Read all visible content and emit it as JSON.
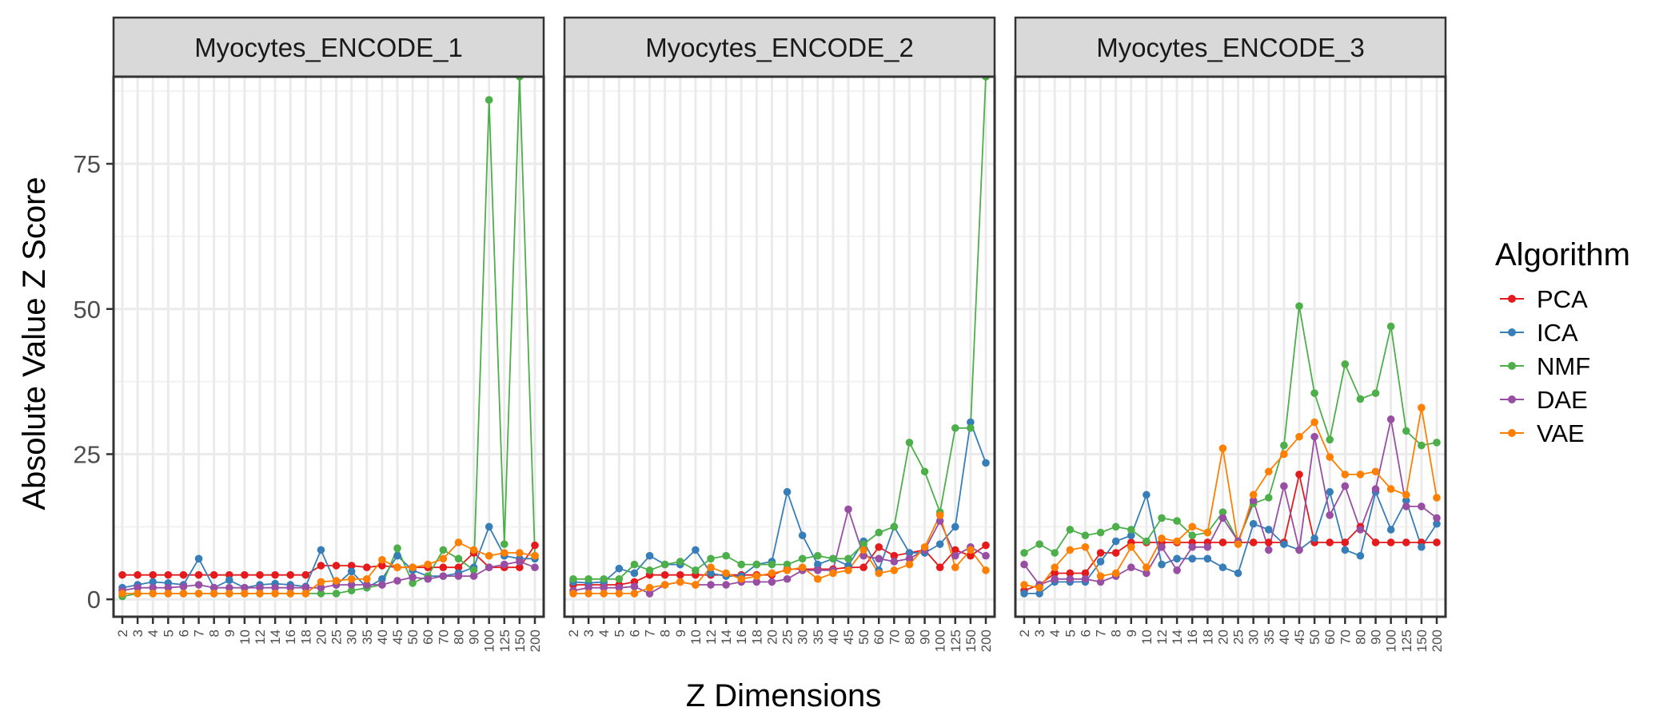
{
  "chart_data": {
    "type": "line",
    "facet_titles": [
      "Myocytes_ENCODE_1",
      "Myocytes_ENCODE_2",
      "Myocytes_ENCODE_3"
    ],
    "xlabel": "Z Dimensions",
    "ylabel": "Absolute Value Z Score",
    "ylim": [
      -3,
      90
    ],
    "y_ticks": [
      0,
      25,
      50,
      75
    ],
    "grid": true,
    "legend_position": "right",
    "legend_title": "Algorithm",
    "categories": [
      "2",
      "3",
      "4",
      "5",
      "6",
      "7",
      "8",
      "9",
      "10",
      "12",
      "14",
      "16",
      "18",
      "20",
      "25",
      "30",
      "35",
      "40",
      "45",
      "50",
      "60",
      "70",
      "80",
      "90",
      "100",
      "125",
      "150",
      "200"
    ],
    "series_names": [
      "PCA",
      "ICA",
      "NMF",
      "DAE",
      "VAE"
    ],
    "colors": [
      "#e41a1c",
      "#377eb8",
      "#4daf4a",
      "#984ea3",
      "#ff7f00"
    ],
    "panels": [
      {
        "title": "Myocytes_ENCODE_1",
        "series": [
          {
            "name": "PCA",
            "values": [
              4.2,
              4.2,
              4.2,
              4.2,
              4.2,
              4.2,
              4.2,
              4.2,
              4.2,
              4.2,
              4.2,
              4.2,
              4.2,
              5.8,
              5.8,
              5.8,
              5.5,
              5.8,
              5.5,
              5.5,
              5.5,
              5.5,
              5.5,
              8.0,
              5.5,
              5.5,
              5.5,
              9.3
            ]
          },
          {
            "name": "ICA",
            "values": [
              2.0,
              2.5,
              3.0,
              2.8,
              2.5,
              7.0,
              2.0,
              3.3,
              2.0,
              2.5,
              2.7,
              2.5,
              2.2,
              8.5,
              2.5,
              4.8,
              2.0,
              3.5,
              7.5,
              5.0,
              4.0,
              4.0,
              4.5,
              5.5,
              12.5,
              7.5,
              7.0,
              7.0
            ]
          },
          {
            "name": "NMF",
            "values": [
              0.5,
              1.0,
              1.0,
              1.0,
              1.0,
              1.0,
              1.0,
              1.0,
              1.0,
              1.0,
              1.0,
              1.0,
              1.0,
              1.0,
              1.0,
              1.5,
              2.0,
              2.5,
              8.8,
              2.8,
              4.0,
              8.5,
              7.0,
              5.0,
              86.0,
              9.5,
              90.0,
              7.5
            ]
          },
          {
            "name": "DAE",
            "values": [
              1.5,
              2.0,
              2.0,
              2.0,
              2.2,
              2.5,
              2.0,
              2.0,
              2.0,
              2.0,
              2.0,
              2.0,
              2.0,
              2.0,
              2.5,
              2.5,
              2.5,
              2.5,
              3.2,
              3.8,
              3.5,
              4.0,
              4.0,
              4.0,
              5.5,
              6.0,
              6.5,
              5.5
            ]
          },
          {
            "name": "VAE",
            "values": [
              1.0,
              1.0,
              1.0,
              1.0,
              1.0,
              1.0,
              1.0,
              1.0,
              1.0,
              1.0,
              1.0,
              1.0,
              1.0,
              3.0,
              3.2,
              3.5,
              3.5,
              6.8,
              5.5,
              5.5,
              6.0,
              7.0,
              9.8,
              8.5,
              7.5,
              8.0,
              8.0,
              7.5
            ]
          }
        ]
      },
      {
        "title": "Myocytes_ENCODE_2",
        "series": [
          {
            "name": "PCA",
            "values": [
              2.5,
              2.5,
              2.5,
              2.5,
              3.0,
              4.2,
              4.2,
              4.2,
              4.2,
              4.2,
              4.2,
              4.2,
              4.2,
              4.2,
              5.2,
              5.2,
              5.2,
              5.2,
              5.5,
              5.5,
              9.0,
              7.5,
              8.0,
              8.5,
              5.5,
              8.5,
              7.5,
              9.3
            ]
          },
          {
            "name": "ICA",
            "values": [
              3.0,
              2.8,
              3.0,
              5.3,
              4.5,
              7.5,
              6.0,
              6.0,
              8.5,
              4.5,
              4.0,
              4.0,
              6.0,
              6.5,
              18.5,
              11.0,
              6.0,
              7.0,
              5.8,
              10.0,
              5.0,
              12.5,
              8.0,
              8.0,
              9.5,
              12.5,
              30.5,
              23.5
            ]
          },
          {
            "name": "NMF",
            "values": [
              3.5,
              3.5,
              3.5,
              3.5,
              6.0,
              5.0,
              6.0,
              6.5,
              5.0,
              7.0,
              7.5,
              6.0,
              6.0,
              6.0,
              6.0,
              7.0,
              7.5,
              7.0,
              7.0,
              9.5,
              11.5,
              12.5,
              27.0,
              22.0,
              15.0,
              29.5,
              29.5,
              90.0
            ]
          },
          {
            "name": "DAE",
            "values": [
              1.5,
              2.0,
              2.0,
              2.0,
              2.2,
              1.0,
              2.5,
              3.0,
              2.5,
              2.5,
              2.5,
              3.0,
              3.0,
              3.0,
              3.5,
              5.0,
              5.0,
              5.0,
              15.5,
              7.5,
              7.0,
              6.5,
              7.0,
              8.5,
              13.5,
              7.5,
              9.0,
              7.5
            ]
          },
          {
            "name": "VAE",
            "values": [
              1.0,
              1.0,
              1.0,
              1.0,
              1.0,
              2.0,
              2.5,
              3.0,
              2.5,
              5.5,
              4.5,
              3.5,
              4.0,
              4.5,
              5.0,
              5.5,
              3.5,
              4.5,
              5.0,
              8.5,
              4.5,
              5.0,
              6.0,
              9.0,
              14.5,
              5.5,
              8.5,
              5.0
            ]
          }
        ]
      },
      {
        "title": "Myocytes_ENCODE_3",
        "series": [
          {
            "name": "PCA",
            "values": [
              1.5,
              2.5,
              4.5,
              4.5,
              4.5,
              8.0,
              8.0,
              9.8,
              9.8,
              9.8,
              9.8,
              9.8,
              9.8,
              9.8,
              9.8,
              9.8,
              9.8,
              9.8,
              21.5,
              9.8,
              9.8,
              9.8,
              12.5,
              9.8,
              9.8,
              9.8,
              9.8,
              9.8
            ]
          },
          {
            "name": "ICA",
            "values": [
              1.0,
              1.0,
              3.0,
              3.0,
              3.0,
              6.5,
              10.0,
              11.0,
              18.0,
              6.0,
              7.0,
              7.0,
              7.0,
              5.5,
              4.5,
              13.0,
              12.0,
              9.5,
              8.5,
              10.5,
              18.5,
              8.5,
              7.5,
              18.5,
              12.0,
              17.0,
              9.0,
              13.0
            ]
          },
          {
            "name": "NMF",
            "values": [
              8.0,
              9.5,
              8.0,
              12.0,
              11.0,
              11.5,
              12.5,
              12.0,
              10.0,
              14.0,
              13.5,
              11.0,
              11.5,
              15.0,
              10.0,
              16.5,
              17.5,
              26.5,
              50.5,
              35.5,
              27.5,
              40.5,
              34.5,
              35.5,
              47.0,
              29.0,
              26.5,
              27.0
            ]
          },
          {
            "name": "DAE",
            "values": [
              6.0,
              2.5,
              3.5,
              3.5,
              3.5,
              3.0,
              4.0,
              5.5,
              4.5,
              9.0,
              5.0,
              9.0,
              9.0,
              14.0,
              10.0,
              17.0,
              8.5,
              19.5,
              8.5,
              28.0,
              14.5,
              19.5,
              12.0,
              19.0,
              31.0,
              16.0,
              16.0,
              14.0
            ]
          },
          {
            "name": "VAE",
            "values": [
              2.5,
              2.0,
              5.5,
              8.5,
              9.0,
              4.0,
              4.5,
              9.0,
              5.5,
              10.5,
              10.0,
              12.5,
              11.5,
              26.0,
              9.5,
              18.0,
              22.0,
              25.0,
              28.0,
              30.5,
              24.5,
              21.5,
              21.5,
              22.0,
              19.0,
              18.0,
              33.0,
              17.5
            ]
          }
        ]
      }
    ]
  }
}
